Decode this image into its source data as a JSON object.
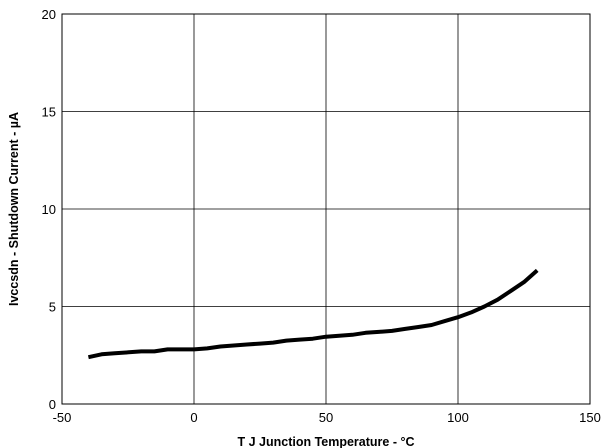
{
  "chart_data": {
    "type": "line",
    "title": "",
    "xlabel": "T J Junction Temperature - °C",
    "ylabel": "Ivccsdn - Shutdown Current - µA",
    "xlim": [
      -50,
      150
    ],
    "ylim": [
      0,
      20
    ],
    "xticks": [
      -50,
      0,
      50,
      100,
      150
    ],
    "yticks": [
      0,
      5,
      10,
      15,
      20
    ],
    "grid": true,
    "legend": "none",
    "line_color": "#000000",
    "series": [
      {
        "x": [
          -40,
          -35,
          -30,
          -20,
          -15,
          -10,
          0,
          5,
          10,
          15,
          20,
          25,
          30,
          35,
          40,
          45,
          50,
          55,
          60,
          65,
          70,
          75,
          80,
          85,
          90,
          95,
          100,
          105,
          110,
          115,
          120,
          125,
          130
        ],
        "values": [
          2.4,
          2.55,
          2.6,
          2.7,
          2.7,
          2.8,
          2.8,
          2.85,
          2.95,
          3.0,
          3.05,
          3.1,
          3.15,
          3.25,
          3.3,
          3.35,
          3.45,
          3.5,
          3.55,
          3.65,
          3.7,
          3.75,
          3.85,
          3.95,
          4.05,
          4.25,
          4.45,
          4.7,
          5.0,
          5.35,
          5.8,
          6.25,
          6.85
        ]
      }
    ]
  }
}
